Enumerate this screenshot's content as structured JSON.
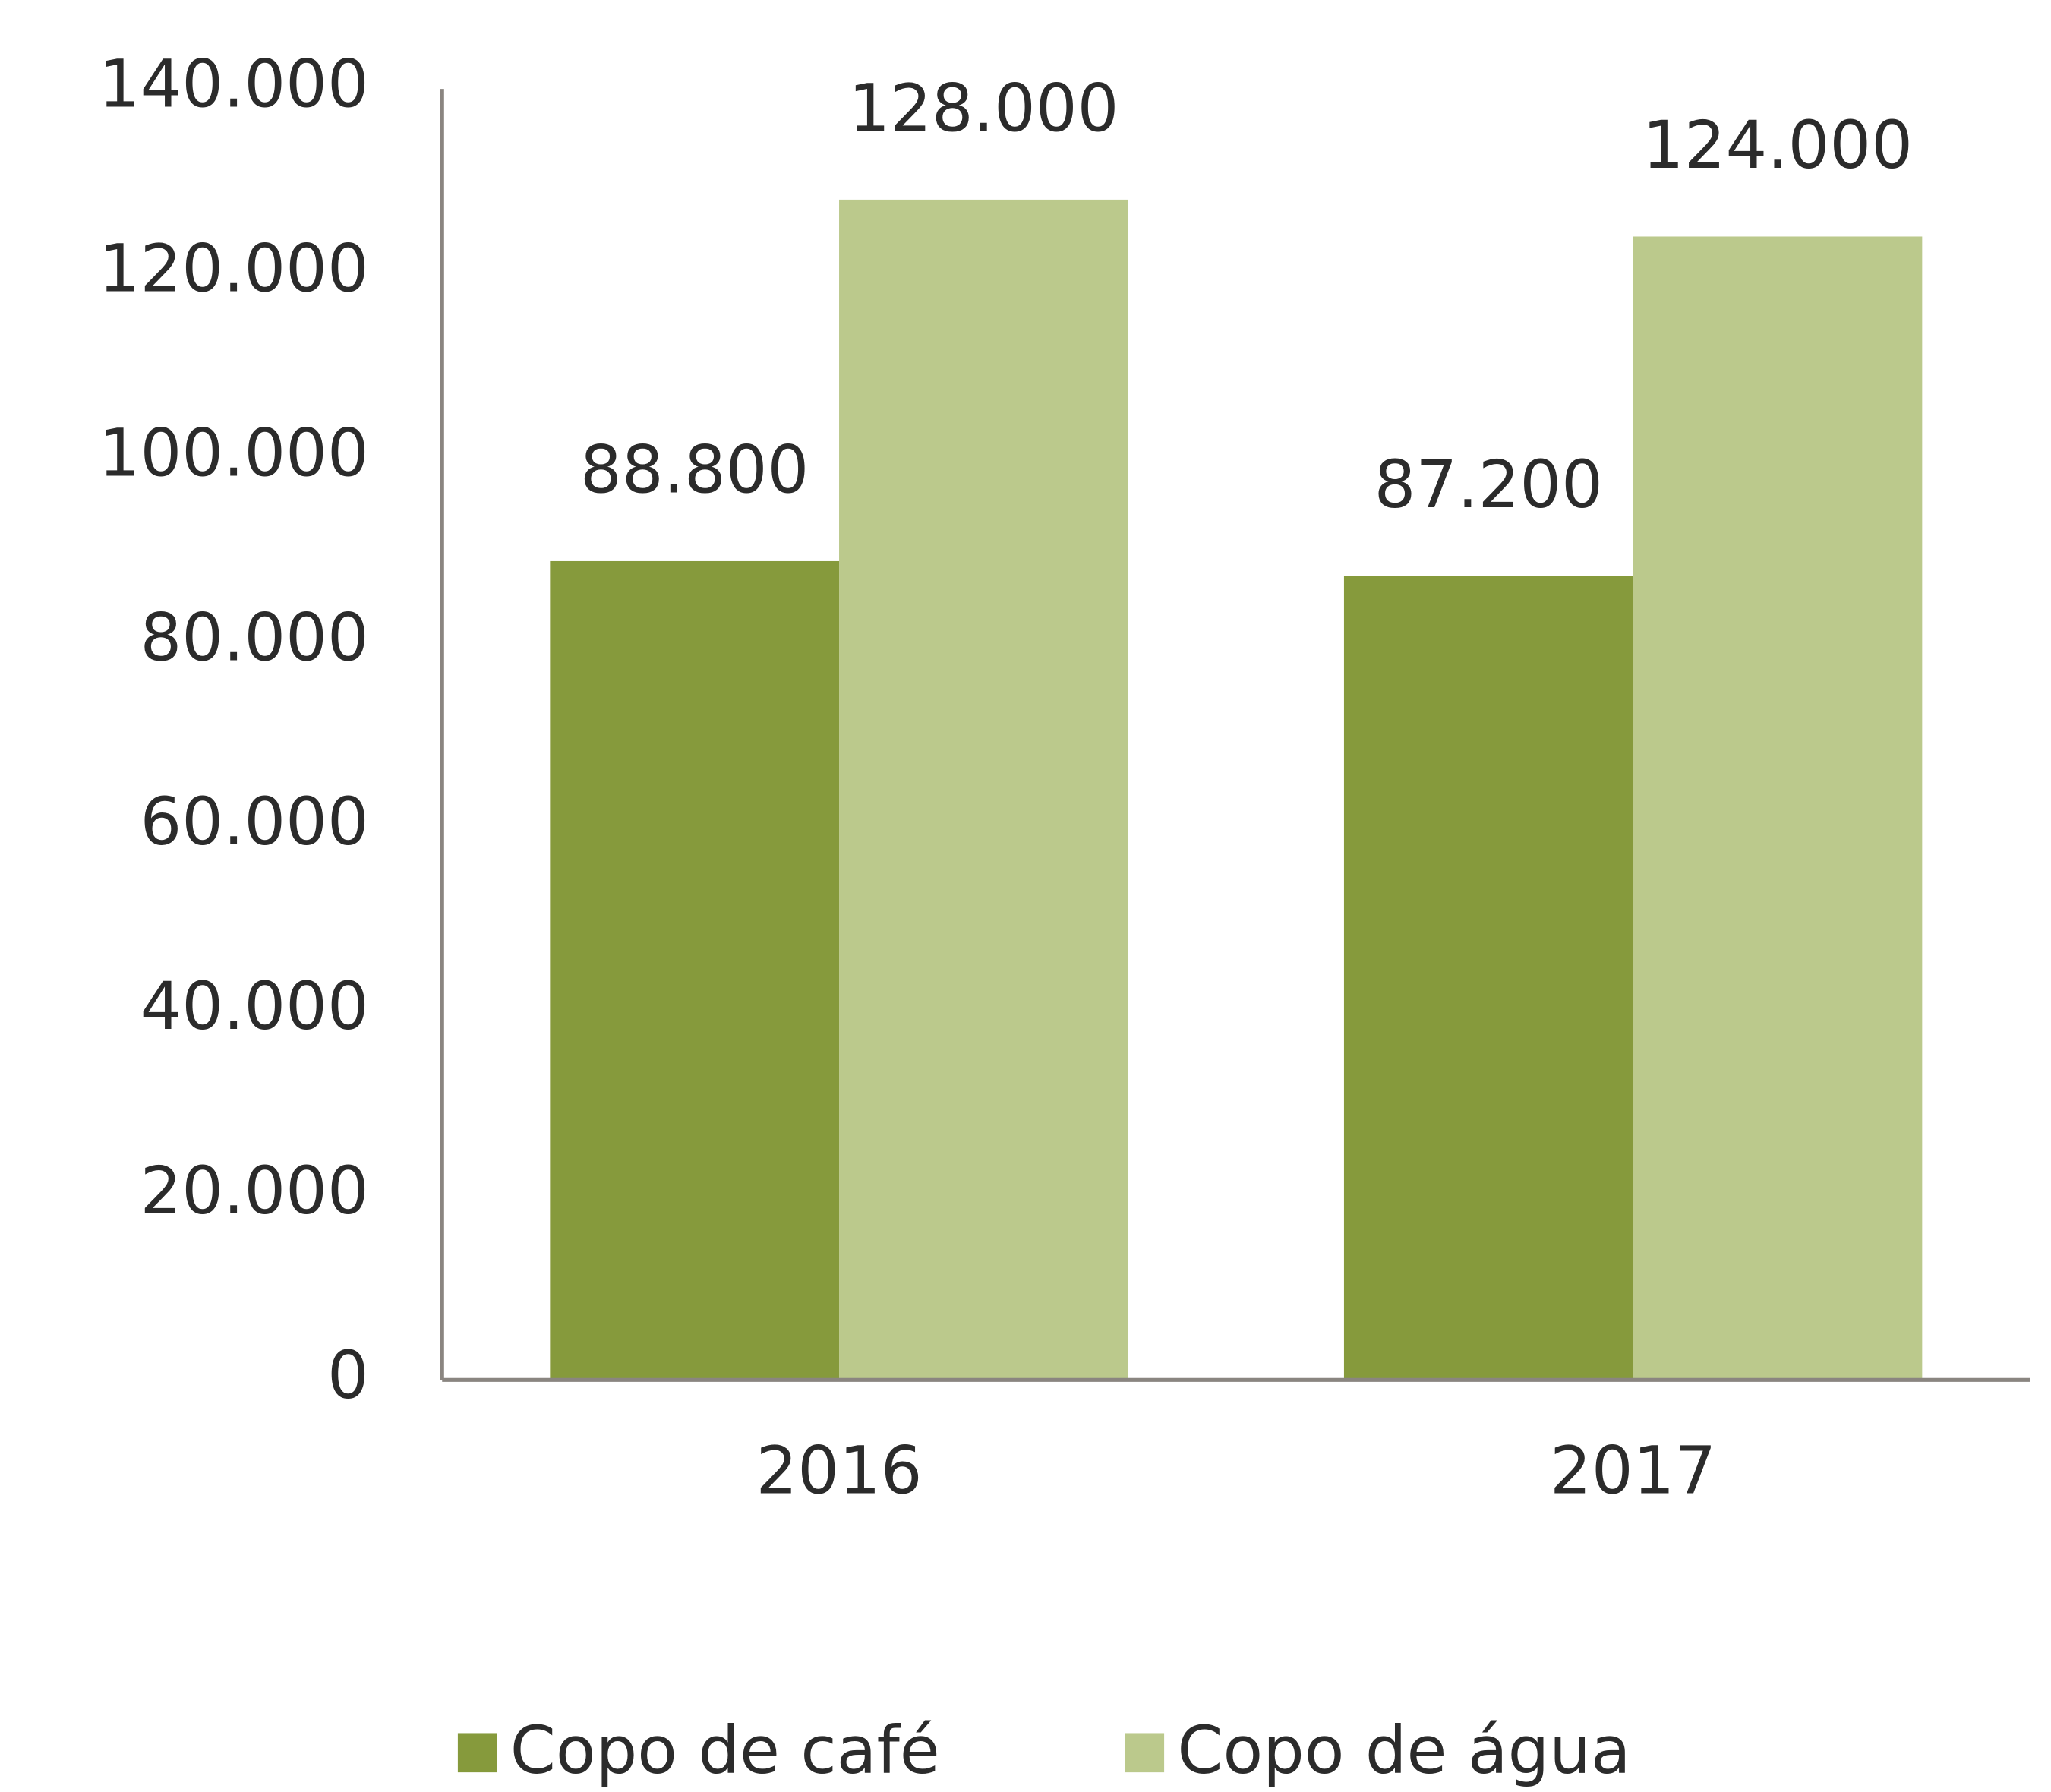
{
  "chart_data": {
    "type": "bar",
    "categories": [
      "2016",
      "2017"
    ],
    "series": [
      {
        "name": "Copo de café",
        "color": "#869a3c",
        "values": [
          88800,
          87200
        ],
        "value_labels": [
          "88.800",
          "87.200"
        ]
      },
      {
        "name": "Copo de água",
        "color": "#bbc98c",
        "values": [
          128000,
          124000
        ],
        "value_labels": [
          "128.000",
          "124.000"
        ]
      }
    ],
    "ylim": [
      0,
      140000
    ],
    "yticks": [
      0,
      {
        "value": 20000,
        "label": "20.000"
      },
      {
        "value": 40000,
        "label": "40.000"
      },
      {
        "value": 60000,
        "label": "60.000"
      },
      {
        "value": 80000,
        "label": "80.000"
      },
      {
        "value": 100000,
        "label": "100.000"
      },
      {
        "value": 120000,
        "label": "120.000"
      },
      {
        "value": 140000,
        "label": "140.000"
      }
    ],
    "grid": false,
    "legend": "bottom"
  }
}
